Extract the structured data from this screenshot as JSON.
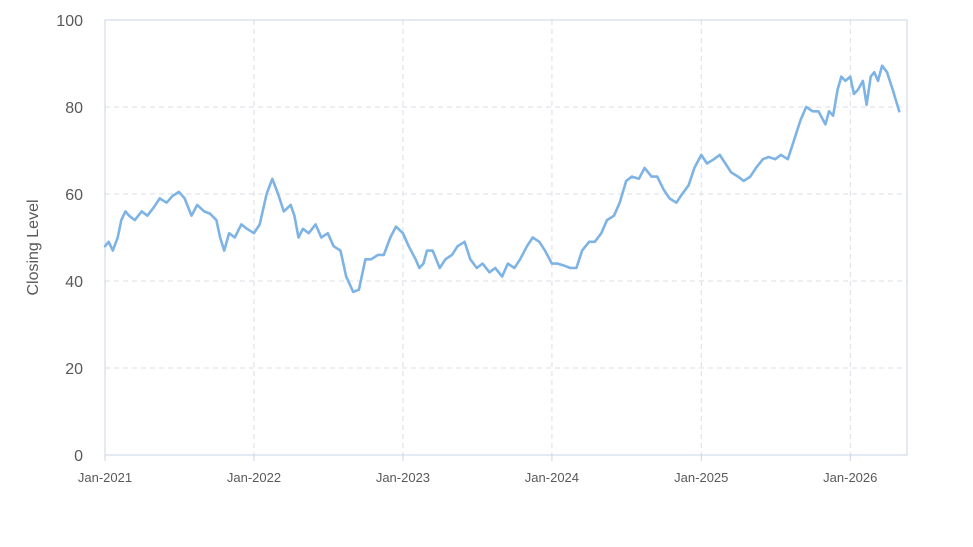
{
  "chart_data": {
    "type": "line",
    "ylabel": "Closing Level",
    "xlabel": "",
    "ylim": [
      0,
      100
    ],
    "yticks": [
      0,
      20,
      40,
      60,
      80,
      100
    ],
    "xlim": [
      "2021-01-01",
      "2026-05-20"
    ],
    "xticks": [
      {
        "date": "2021-01-01",
        "label": "Jan-2021"
      },
      {
        "date": "2022-01-01",
        "label": "Jan-2022"
      },
      {
        "date": "2023-01-01",
        "label": "Jan-2023"
      },
      {
        "date": "2024-01-01",
        "label": "Jan-2024"
      },
      {
        "date": "2025-01-01",
        "label": "Jan-2025"
      },
      {
        "date": "2026-01-01",
        "label": "Jan-2026"
      }
    ],
    "grid": true,
    "series": [
      {
        "color": "#7eb3e6",
        "points": [
          [
            "2021-01-01",
            48
          ],
          [
            "2021-01-10",
            49
          ],
          [
            "2021-01-20",
            47
          ],
          [
            "2021-02-01",
            50
          ],
          [
            "2021-02-10",
            54
          ],
          [
            "2021-02-20",
            56
          ],
          [
            "2021-03-01",
            55
          ],
          [
            "2021-03-15",
            54
          ],
          [
            "2021-04-01",
            56
          ],
          [
            "2021-04-15",
            55
          ],
          [
            "2021-05-01",
            57
          ],
          [
            "2021-05-15",
            59
          ],
          [
            "2021-06-01",
            58
          ],
          [
            "2021-06-15",
            59.5
          ],
          [
            "2021-07-01",
            60.5
          ],
          [
            "2021-07-15",
            59
          ],
          [
            "2021-08-01",
            55
          ],
          [
            "2021-08-15",
            57.5
          ],
          [
            "2021-09-01",
            56
          ],
          [
            "2021-09-15",
            55.5
          ],
          [
            "2021-10-01",
            54
          ],
          [
            "2021-10-10",
            50
          ],
          [
            "2021-10-20",
            47
          ],
          [
            "2021-11-01",
            51
          ],
          [
            "2021-11-15",
            50
          ],
          [
            "2021-12-01",
            53
          ],
          [
            "2021-12-15",
            52
          ],
          [
            "2022-01-01",
            51
          ],
          [
            "2022-01-15",
            53
          ],
          [
            "2022-02-01",
            60
          ],
          [
            "2022-02-15",
            63.5
          ],
          [
            "2022-03-01",
            60
          ],
          [
            "2022-03-15",
            56
          ],
          [
            "2022-04-01",
            57.5
          ],
          [
            "2022-04-10",
            55
          ],
          [
            "2022-04-20",
            50
          ],
          [
            "2022-05-01",
            52
          ],
          [
            "2022-05-15",
            51
          ],
          [
            "2022-06-01",
            53
          ],
          [
            "2022-06-15",
            50
          ],
          [
            "2022-07-01",
            51
          ],
          [
            "2022-07-15",
            48
          ],
          [
            "2022-08-01",
            47
          ],
          [
            "2022-08-15",
            41
          ],
          [
            "2022-09-01",
            37.5
          ],
          [
            "2022-09-15",
            38
          ],
          [
            "2022-10-01",
            45
          ],
          [
            "2022-10-15",
            45
          ],
          [
            "2022-11-01",
            46
          ],
          [
            "2022-11-15",
            46
          ],
          [
            "2022-12-01",
            50
          ],
          [
            "2022-12-15",
            52.5
          ],
          [
            "2023-01-01",
            51
          ],
          [
            "2023-01-15",
            48
          ],
          [
            "2023-02-01",
            45
          ],
          [
            "2023-02-10",
            43
          ],
          [
            "2023-02-20",
            44
          ],
          [
            "2023-03-01",
            47
          ],
          [
            "2023-03-15",
            47
          ],
          [
            "2023-04-01",
            43
          ],
          [
            "2023-04-15",
            45
          ],
          [
            "2023-05-01",
            46
          ],
          [
            "2023-05-15",
            48
          ],
          [
            "2023-06-01",
            49
          ],
          [
            "2023-06-15",
            45
          ],
          [
            "2023-07-01",
            43
          ],
          [
            "2023-07-15",
            44
          ],
          [
            "2023-08-01",
            42
          ],
          [
            "2023-08-15",
            43
          ],
          [
            "2023-09-01",
            41
          ],
          [
            "2023-09-15",
            44
          ],
          [
            "2023-10-01",
            43
          ],
          [
            "2023-10-15",
            45
          ],
          [
            "2023-11-01",
            48
          ],
          [
            "2023-11-15",
            50
          ],
          [
            "2023-12-01",
            49
          ],
          [
            "2023-12-15",
            47
          ],
          [
            "2024-01-01",
            44
          ],
          [
            "2024-01-15",
            44
          ],
          [
            "2024-02-01",
            43.5
          ],
          [
            "2024-02-15",
            43
          ],
          [
            "2024-03-01",
            43
          ],
          [
            "2024-03-15",
            47
          ],
          [
            "2024-04-01",
            49
          ],
          [
            "2024-04-15",
            49
          ],
          [
            "2024-05-01",
            51
          ],
          [
            "2024-05-15",
            54
          ],
          [
            "2024-06-01",
            55
          ],
          [
            "2024-06-15",
            58
          ],
          [
            "2024-07-01",
            63
          ],
          [
            "2024-07-15",
            64
          ],
          [
            "2024-08-01",
            63.5
          ],
          [
            "2024-08-15",
            66
          ],
          [
            "2024-09-01",
            64
          ],
          [
            "2024-09-15",
            64
          ],
          [
            "2024-10-01",
            61
          ],
          [
            "2024-10-15",
            59
          ],
          [
            "2024-11-01",
            58
          ],
          [
            "2024-11-15",
            60
          ],
          [
            "2024-12-01",
            62
          ],
          [
            "2024-12-15",
            66
          ],
          [
            "2025-01-01",
            69
          ],
          [
            "2025-01-15",
            67
          ],
          [
            "2025-02-01",
            68
          ],
          [
            "2025-02-15",
            69
          ],
          [
            "2025-03-01",
            67
          ],
          [
            "2025-03-15",
            65
          ],
          [
            "2025-04-01",
            64
          ],
          [
            "2025-04-15",
            63
          ],
          [
            "2025-05-01",
            64
          ],
          [
            "2025-05-15",
            66
          ],
          [
            "2025-06-01",
            68
          ],
          [
            "2025-06-15",
            68.5
          ],
          [
            "2025-07-01",
            68
          ],
          [
            "2025-07-15",
            69
          ],
          [
            "2025-08-01",
            68
          ],
          [
            "2025-08-15",
            72
          ],
          [
            "2025-09-01",
            77
          ],
          [
            "2025-09-15",
            80
          ],
          [
            "2025-10-01",
            79
          ],
          [
            "2025-10-15",
            79
          ],
          [
            "2025-11-01",
            76
          ],
          [
            "2025-11-10",
            79
          ],
          [
            "2025-11-20",
            78
          ],
          [
            "2025-12-01",
            84
          ],
          [
            "2025-12-10",
            87
          ],
          [
            "2025-12-20",
            86
          ],
          [
            "2026-01-01",
            87
          ],
          [
            "2026-01-10",
            83
          ],
          [
            "2026-01-20",
            84
          ],
          [
            "2026-02-01",
            86
          ],
          [
            "2026-02-10",
            80.5
          ],
          [
            "2026-02-20",
            87
          ],
          [
            "2026-03-01",
            88
          ],
          [
            "2026-03-10",
            86
          ],
          [
            "2026-03-20",
            89.5
          ],
          [
            "2026-04-01",
            88
          ],
          [
            "2026-04-15",
            84
          ],
          [
            "2026-05-01",
            79
          ]
        ]
      }
    ]
  }
}
